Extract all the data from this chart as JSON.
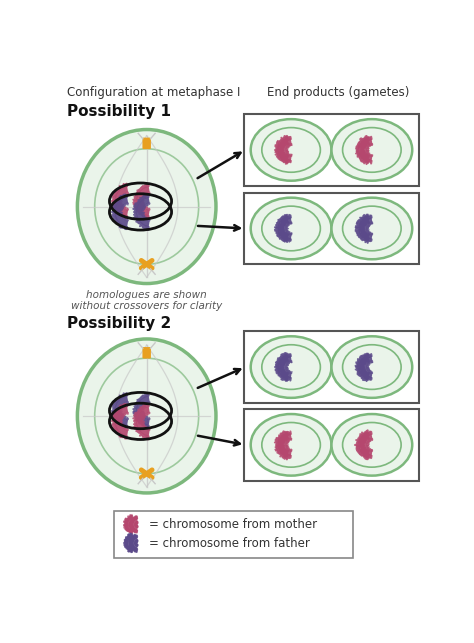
{
  "title_left": "Configuration at metaphase I",
  "title_right": "End products (gametes)",
  "possibility1_label": "Possibility 1",
  "possibility2_label": "Possibility 2",
  "italic_text": "homologues are shown\nwithout crossovers for clarity",
  "legend_mother": "= chromosome from mother",
  "legend_father": "= chromosome from father",
  "color_mother": "#b5476e",
  "color_father": "#5b4a8a",
  "color_cell_outer": "#7db87d",
  "color_cell_inner_ring": "#a8d4a8",
  "color_cell_fill": "#eaf4ea",
  "color_kinetochore": "#e8a020",
  "bg_color": "#ffffff",
  "spindle_color": "#c8c8c8",
  "bivalent_outline": "#111111",
  "arrow_color": "#111111",
  "box_border": "#555555",
  "legend_box_border": "#888888"
}
